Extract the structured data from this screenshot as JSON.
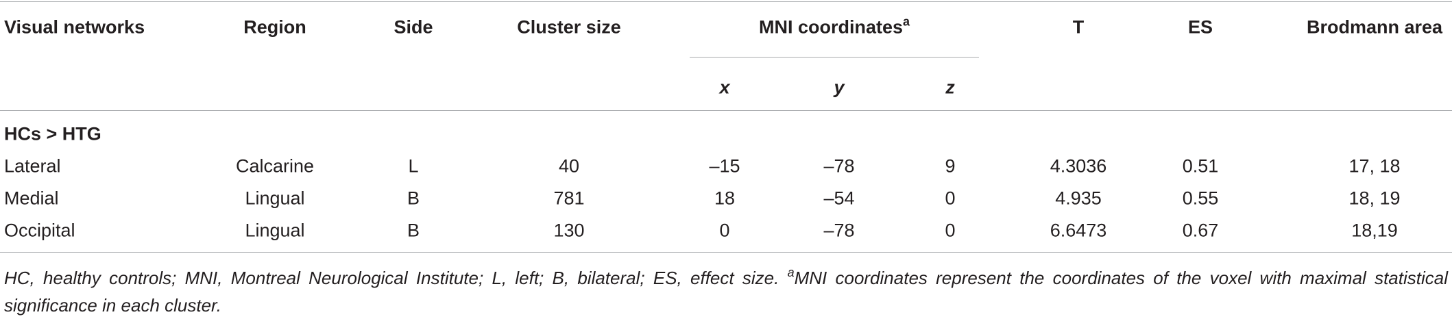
{
  "table": {
    "columns": [
      "Visual networks",
      "Region",
      "Side",
      "Cluster size",
      "MNI coordinates",
      "T",
      "ES",
      "Brodmann area"
    ],
    "mni_mark": "a",
    "subcolumns": [
      "x",
      "y",
      "z"
    ],
    "section": "HCs > HTG",
    "rows": [
      [
        "Lateral",
        "Calcarine",
        "L",
        "40",
        "–15",
        "–78",
        "9",
        "4.3036",
        "0.51",
        "17, 18"
      ],
      [
        "Medial",
        "Lingual",
        "B",
        "781",
        "18",
        "–54",
        "0",
        "4.935",
        "0.55",
        "18, 19"
      ],
      [
        "Occipital",
        "Lingual",
        "B",
        "130",
        "0",
        "–78",
        "0",
        "6.6473",
        "0.67",
        "18,19"
      ]
    ]
  },
  "footnote": {
    "text": "HC, healthy controls; MNI, Montreal Neurological Institute; L, left; B, bilateral; ES, effect size.",
    "mark": "a",
    "note": "MNI coordinates represent the coordinates of the voxel with maximal statistical significance in each cluster."
  }
}
